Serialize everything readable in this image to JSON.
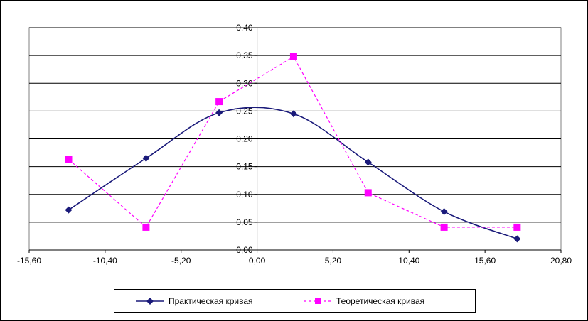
{
  "chart_data": {
    "type": "line",
    "xlim": [
      -15.6,
      20.8
    ],
    "ylim": [
      0,
      0.4
    ],
    "x_ticks": [
      "-15,60",
      "-10,40",
      "-5,20",
      "0,00",
      "5,20",
      "10,40",
      "15,60",
      "20,80"
    ],
    "y_ticks": [
      "0,00",
      "0,05",
      "0,10",
      "0,15",
      "0,20",
      "0,25",
      "0,30",
      "0,35",
      "0,40"
    ],
    "grid": true,
    "legend_position": "bottom",
    "series": [
      {
        "name": "Практическая кривая",
        "color": "#1a1a7a",
        "marker": "diamond",
        "smooth": true,
        "dashed": false,
        "x": [
          -12.9,
          -7.6,
          -2.6,
          2.5,
          7.6,
          12.8,
          17.8
        ],
        "y": [
          0.072,
          0.165,
          0.247,
          0.245,
          0.158,
          0.069,
          0.02
        ]
      },
      {
        "name": "Теоретическая  кривая",
        "color": "#ff00ff",
        "marker": "square",
        "smooth": false,
        "dashed": true,
        "x": [
          -12.9,
          -7.6,
          -2.6,
          2.5,
          7.6,
          12.8,
          17.8
        ],
        "y": [
          0.163,
          0.041,
          0.267,
          0.348,
          0.103,
          0.041,
          0.041
        ]
      }
    ]
  }
}
